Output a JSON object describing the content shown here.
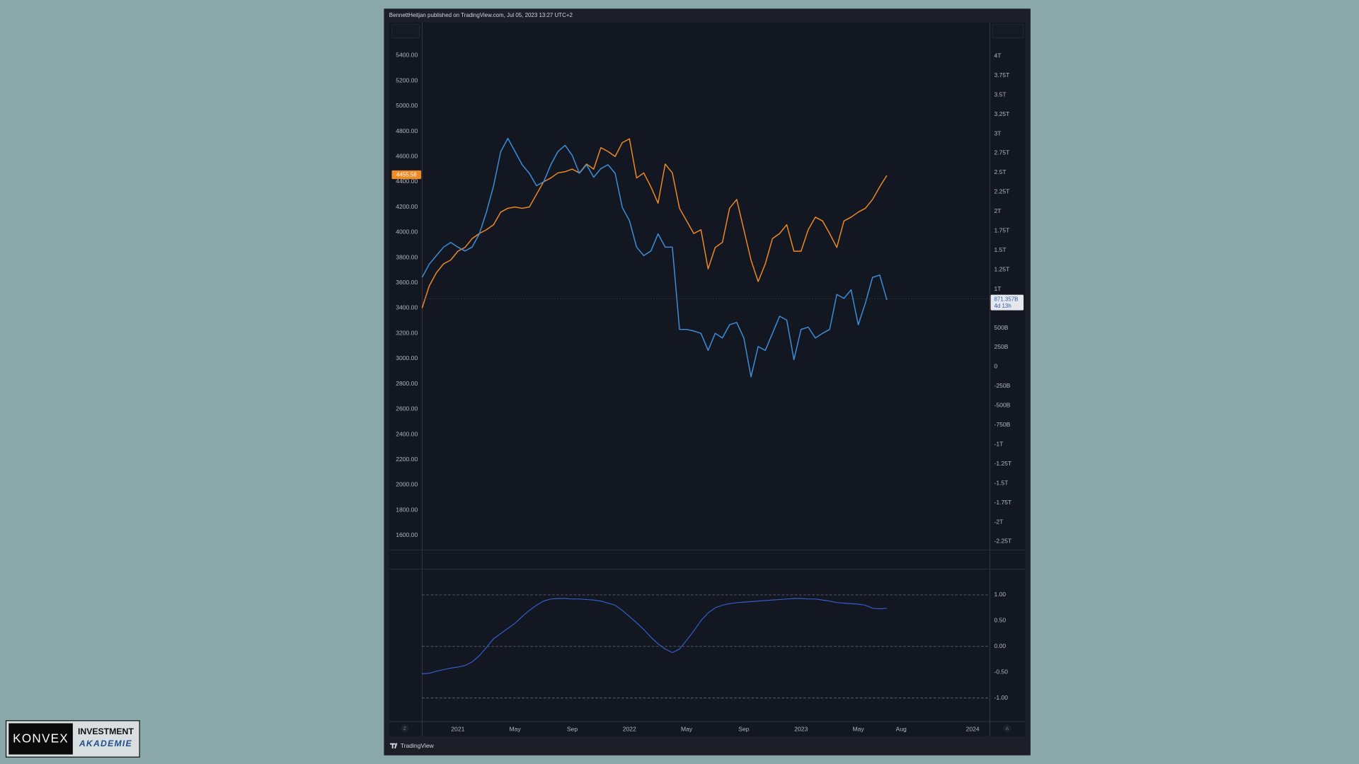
{
  "header": "BennettHeitjan published on TradingView.com, Jul 05, 2023 13:27 UTC+2",
  "footer": "TradingView",
  "buttons": [
    "Z",
    "A"
  ],
  "logo": {
    "left": "KONVEX",
    "top": "INVESTMENT",
    "bottom": "AKADEMIE"
  },
  "chart_data": [
    {
      "type": "line",
      "categories": [
        null,
        null,
        null,
        null,
        null,
        "2021",
        null,
        null,
        null,
        null,
        null,
        null,
        null,
        "May",
        null,
        null,
        null,
        null,
        null,
        null,
        null,
        "Sep",
        null,
        null,
        null,
        null,
        null,
        null,
        null,
        "2022",
        null,
        null,
        null,
        null,
        null,
        null,
        null,
        "May",
        null,
        null,
        null,
        null,
        null,
        null,
        null,
        "Sep",
        null,
        null,
        null,
        null,
        null,
        null,
        null,
        "2023",
        null,
        null,
        null,
        null,
        null,
        null,
        null,
        "May",
        null,
        null,
        null,
        null,
        null,
        "Aug",
        null,
        null,
        null,
        null,
        null,
        null,
        null,
        null,
        null,
        "2024",
        null,
        null
      ],
      "series": [
        {
          "color": "#f08a24",
          "axis": "y",
          "values": [
            3400,
            3575,
            3680,
            3750,
            3780,
            3850,
            3880,
            3950,
            3990,
            4020,
            4060,
            4160,
            4190,
            4200,
            4190,
            4200,
            4300,
            4400,
            4430,
            4470,
            4480,
            4500,
            4470,
            4540,
            4500,
            4670,
            4640,
            4600,
            4710,
            4740,
            4430,
            4470,
            4360,
            4230,
            4540,
            4470,
            4190,
            4090,
            3990,
            4020,
            3710,
            3880,
            3920,
            4190,
            4260,
            4020,
            3780,
            3610,
            3750,
            3950,
            3990,
            4060,
            3850,
            3850,
            4020,
            4120,
            4090,
            3990,
            3880,
            4090,
            4120,
            4160,
            4190,
            4260,
            4360,
            4450,
            null,
            null,
            null,
            null,
            null,
            null,
            null,
            null,
            null,
            null,
            null,
            null,
            null,
            null
          ],
          "tag": {
            "value": 4455.58,
            "label": "4455.58"
          }
        },
        {
          "color": "#3d8fdc",
          "axis": "y2",
          "values": [
            1.15,
            1.32,
            1.43,
            1.54,
            1.6,
            1.54,
            1.49,
            1.54,
            1.71,
            1.99,
            2.33,
            2.77,
            2.94,
            2.77,
            2.6,
            2.49,
            2.33,
            2.38,
            2.6,
            2.77,
            2.85,
            2.72,
            2.49,
            2.6,
            2.44,
            2.55,
            2.6,
            2.49,
            2.05,
            1.88,
            1.54,
            1.43,
            1.49,
            1.71,
            1.54,
            1.54,
            0.48,
            0.48,
            0.46,
            0.43,
            0.21,
            0.43,
            0.37,
            0.54,
            0.57,
            0.37,
            -0.13,
            0.26,
            0.21,
            0.43,
            0.65,
            0.6,
            0.09,
            0.48,
            0.51,
            0.37,
            0.43,
            0.48,
            0.93,
            0.88,
            0.99,
            0.54,
            0.82,
            1.15,
            1.18,
            0.86,
            null,
            null,
            null,
            null,
            null,
            null,
            null,
            null,
            null,
            null,
            null,
            null,
            null,
            null
          ],
          "tag": {
            "value": 0.871357,
            "label": "871.357B",
            "countdown": "4d 13h"
          }
        }
      ],
      "ylim": [
        1484,
        5654
      ],
      "yticks": [
        {
          "value": 5400,
          "label": "5400.00"
        },
        {
          "value": 5200,
          "label": "5200.00"
        },
        {
          "value": 5000,
          "label": "5000.00"
        },
        {
          "value": 4800,
          "label": "4800.00"
        },
        {
          "value": 4600,
          "label": "4600.00"
        },
        {
          "value": 4400,
          "label": "4400.00"
        },
        {
          "value": 4200,
          "label": "4200.00"
        },
        {
          "value": 4000,
          "label": "4000.00"
        },
        {
          "value": 3800,
          "label": "3800.00"
        },
        {
          "value": 3600,
          "label": "3600.00"
        },
        {
          "value": 3400,
          "label": "3400.00"
        },
        {
          "value": 3200,
          "label": "3200.00"
        },
        {
          "value": 3000,
          "label": "3000.00"
        },
        {
          "value": 2800,
          "label": "2800.00"
        },
        {
          "value": 2600,
          "label": "2600.00"
        },
        {
          "value": 2400,
          "label": "2400.00"
        },
        {
          "value": 2200,
          "label": "2200.00"
        },
        {
          "value": 2000,
          "label": "2000.00"
        },
        {
          "value": 1800,
          "label": "1800.00"
        },
        {
          "value": 1600,
          "label": "1600.00"
        }
      ],
      "y2lim": [
        -2.36,
        4.42
      ],
      "y2ticks": [
        {
          "value": 4,
          "label": "4T"
        },
        {
          "value": 3.75,
          "label": "3.75T"
        },
        {
          "value": 3.5,
          "label": "3.5T"
        },
        {
          "value": 3.25,
          "label": "3.25T"
        },
        {
          "value": 3,
          "label": "3T"
        },
        {
          "value": 2.75,
          "label": "2.75T"
        },
        {
          "value": 2.5,
          "label": "2.5T"
        },
        {
          "value": 2.25,
          "label": "2.25T"
        },
        {
          "value": 2,
          "label": "2T"
        },
        {
          "value": 1.75,
          "label": "1.75T"
        },
        {
          "value": 1.5,
          "label": "1.5T"
        },
        {
          "value": 1.25,
          "label": "1.25T"
        },
        {
          "value": 1,
          "label": "1T"
        },
        {
          "value": 0.5,
          "label": "500B"
        },
        {
          "value": 0.25,
          "label": "250B"
        },
        0,
        {
          "value": -0.25,
          "label": "-250B"
        },
        {
          "value": -0.5,
          "label": "-500B"
        },
        {
          "value": -0.75,
          "label": "-750B"
        },
        {
          "value": -1,
          "label": "-1T"
        },
        {
          "value": -1.25,
          "label": "-1.25T"
        },
        {
          "value": -1.5,
          "label": "-1.5T"
        },
        {
          "value": -1.75,
          "label": "-1.75T"
        },
        {
          "value": -2,
          "label": "-2T"
        },
        {
          "value": -2.25,
          "label": "-2.25T"
        }
      ],
      "grid": false
    },
    {
      "type": "line",
      "color": "#3a62d8",
      "values": [
        -0.53,
        -0.52,
        -0.48,
        -0.45,
        -0.42,
        -0.4,
        -0.37,
        -0.3,
        -0.18,
        -0.02,
        0.15,
        0.25,
        0.35,
        0.45,
        0.58,
        0.7,
        0.8,
        0.88,
        0.92,
        0.93,
        0.93,
        0.92,
        0.92,
        0.91,
        0.9,
        0.88,
        0.84,
        0.8,
        0.7,
        0.58,
        0.46,
        0.33,
        0.18,
        0.05,
        -0.05,
        -0.12,
        -0.05,
        0.12,
        0.3,
        0.5,
        0.65,
        0.75,
        0.8,
        0.83,
        0.85,
        0.86,
        0.87,
        0.88,
        0.89,
        0.9,
        0.91,
        0.92,
        0.93,
        0.93,
        0.92,
        0.92,
        0.9,
        0.88,
        0.85,
        0.84,
        0.83,
        0.82,
        0.8,
        0.74,
        0.73,
        0.74,
        null,
        null,
        null,
        null,
        null,
        null,
        null,
        null,
        null,
        null,
        null,
        null,
        null,
        null
      ],
      "ylim": [
        -1.44,
        1.5
      ],
      "yticks": [
        {
          "value": 1,
          "label": "1.00"
        },
        {
          "value": 0.5,
          "label": "0.50"
        },
        {
          "value": 0,
          "label": "0.00"
        },
        {
          "value": -0.5,
          "label": "-0.50"
        },
        {
          "value": -1,
          "label": "-1.00"
        }
      ],
      "hlines": [
        1,
        0,
        -1
      ]
    }
  ]
}
